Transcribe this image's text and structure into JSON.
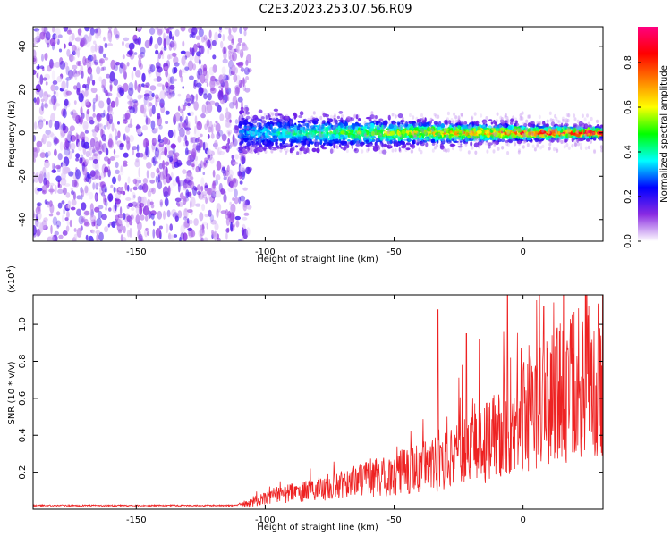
{
  "title": "C2E3.2023.253.07.56.R09",
  "colors": {
    "snr_line": "#ee2222",
    "axis": "#000000"
  },
  "chart_data": [
    {
      "type": "heatmap",
      "xlabel": "Height of straight line (km)",
      "ylabel": "Frequency (Hz)",
      "xlim": [
        -190,
        31
      ],
      "ylim": [
        -50,
        49
      ],
      "x_ticks": [
        -150,
        -100,
        -50,
        0
      ],
      "y_ticks": [
        -40,
        -20,
        0,
        20,
        40
      ],
      "x_tick_labels": [
        "-150",
        "-100",
        "-50",
        "0"
      ],
      "y_tick_labels": [
        "-40",
        "-20",
        "0",
        "20",
        "40"
      ],
      "colorbar": {
        "label": "Normalized spectral amplitude",
        "range": [
          0,
          0.96
        ],
        "ticks": [
          0.0,
          0.2,
          0.4,
          0.6,
          0.8
        ],
        "tick_labels": [
          "0.0",
          "0.2",
          "0.4",
          "0.6",
          "0.8"
        ],
        "colormap": [
          "#ffffff",
          "#8a2be2",
          "#0000ff",
          "#00ffff",
          "#00ff00",
          "#ffff00",
          "#ff8000",
          "#ff0000",
          "#ff0080"
        ]
      },
      "noise_region_x": [
        -190,
        -110
      ],
      "signal_band": {
        "x_start": -110,
        "x_end": 31,
        "center_freq": 0,
        "half_width_start": 9,
        "half_width_end": 3
      }
    },
    {
      "type": "line",
      "xlabel": "Height of straight line (km)",
      "ylabel": "SNR (10 * v/v)",
      "y_multiplier": "(x10",
      "y_multiplier_exp": "4",
      "y_multiplier_close": ")",
      "xlim": [
        -190,
        31
      ],
      "ylim": [
        0,
        1.16
      ],
      "x_ticks": [
        -150,
        -100,
        -50,
        0
      ],
      "y_ticks": [
        0.2,
        0.4,
        0.6,
        0.8,
        1.0
      ],
      "x_tick_labels": [
        "-150",
        "-100",
        "-50",
        "0"
      ],
      "y_tick_labels": [
        "0.2",
        "0.4",
        "0.6",
        "0.8",
        "1.0"
      ],
      "series": [
        {
          "color": "#ee2222",
          "x": [
            -190,
            -170,
            -150,
            -130,
            -112,
            -105,
            -100,
            -90,
            -80,
            -70,
            -60,
            -50,
            -40,
            -30,
            -20,
            -10,
            0,
            10,
            20,
            31
          ],
          "y": [
            0.02,
            0.02,
            0.02,
            0.02,
            0.02,
            0.04,
            0.07,
            0.1,
            0.12,
            0.15,
            0.18,
            0.21,
            0.25,
            0.3,
            0.36,
            0.43,
            0.55,
            0.65,
            0.75,
            0.82
          ]
        }
      ],
      "spikes": [
        {
          "x": -33,
          "y": 1.08
        },
        {
          "x": -22,
          "y": 0.95
        },
        {
          "x": -17,
          "y": 0.92
        },
        {
          "x": -6,
          "y": 1.16
        },
        {
          "x": 8,
          "y": 1.1
        },
        {
          "x": 19,
          "y": 1.05
        }
      ]
    }
  ]
}
